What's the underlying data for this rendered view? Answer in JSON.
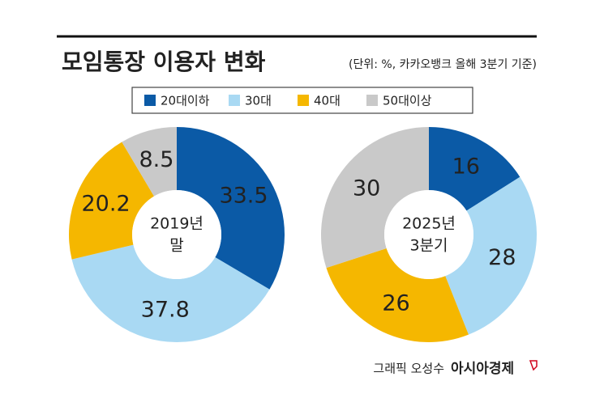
{
  "header": {
    "title": "모임통장 이용자 변화",
    "subtitle": "(단위: %, 카카오뱅크 올해 3분기 기준)"
  },
  "chart_data": [
    {
      "type": "pie",
      "donut": true,
      "center_label": [
        "2019년",
        "말"
      ],
      "categories": [
        "20대이하",
        "30대",
        "40대",
        "50대이상"
      ],
      "values": [
        33.5,
        37.8,
        20.2,
        8.5
      ],
      "colors": [
        "#0b5aa6",
        "#a9d9f3",
        "#f5b700",
        "#c9c9c9"
      ]
    },
    {
      "type": "pie",
      "donut": true,
      "center_label": [
        "2025년",
        "3분기"
      ],
      "categories": [
        "20대이하",
        "30대",
        "40대",
        "50대이상"
      ],
      "values": [
        16,
        28,
        26,
        30
      ],
      "colors": [
        "#0b5aa6",
        "#a9d9f3",
        "#f5b700",
        "#c9c9c9"
      ]
    }
  ],
  "footer": {
    "credit": "그래픽 오성수",
    "source": "아시아경제"
  }
}
